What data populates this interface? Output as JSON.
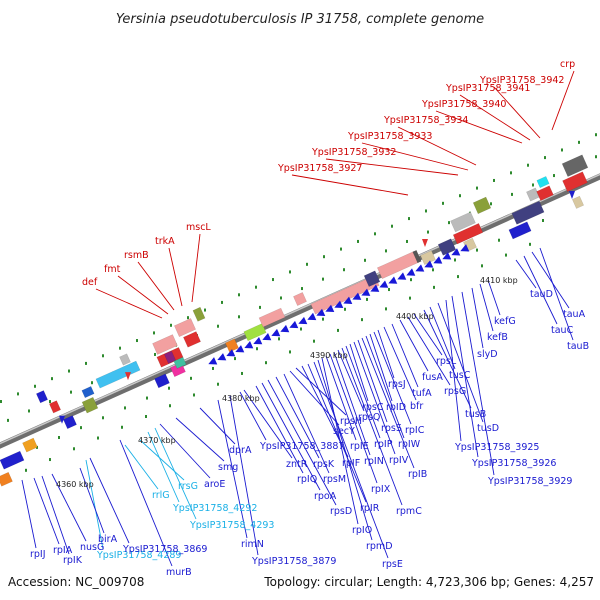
{
  "title": "Yersinia pseudotuberculosis IP 31758, complete genome",
  "footer": {
    "accession": "Accession: NC_009708",
    "topology": "Topology: circular; Length: 4,723,306 bp; Genes: 4,257"
  },
  "colors": {
    "top_label": "#cc0000",
    "bottom_label": "#1a1ad0",
    "rna_label": "#1ab0e6",
    "backbone": "#777777"
  },
  "kbp_marks": [
    "4360 kbp",
    "4370 kbp",
    "4380 kbp",
    "4390 kbp",
    "4400 kbp",
    "4410 kbp"
  ],
  "top_labels": [
    "def",
    "fmt",
    "rsmB",
    "trkA",
    "mscL",
    "YpsIP31758_3927",
    "YpsIP31758_3932",
    "YpsIP31758_3933",
    "YpsIP31758_3934",
    "YpsIP31758_3940",
    "YpsIP31758_3941",
    "YpsIP31758_3942",
    "crp"
  ],
  "bottom_labels": [
    "rpIJ",
    "rpIA",
    "rpIK",
    "nusG",
    "YpsIP31758_4289",
    "birA",
    "YpsIP31758_3869",
    "murB",
    "rrlG",
    "rrsG",
    "YpsIP31758_4292",
    "YpsIP31758_4293",
    "aroE",
    "smg",
    "dprA",
    "rimN",
    "YpsIP31758_3879",
    "YpsIP31758_3887",
    "zntR",
    "rpIQ",
    "rpoA",
    "rpsD",
    "rpsK",
    "rpsM",
    "secY",
    "rpsH",
    "rpIF",
    "rpIR",
    "rpsE",
    "rpmD",
    "rpIO",
    "rpIE",
    "rpIX",
    "rpIN",
    "rpsQ",
    "rpmC",
    "rpIP",
    "rpsC",
    "rpIV",
    "rpsS",
    "rpIB",
    "rpIW",
    "rpID",
    "rpIC",
    "rpsJ",
    "bfr",
    "tufA",
    "fusA",
    "rpsG",
    "rpsL",
    "tusB",
    "tusC",
    "tusD",
    "YpsIP31758_3925",
    "YpsIP31758_3926",
    "YpsIP31758_3929",
    "slyD",
    "kefB",
    "kefG",
    "tauD",
    "tauC",
    "tauA",
    "tauB"
  ]
}
